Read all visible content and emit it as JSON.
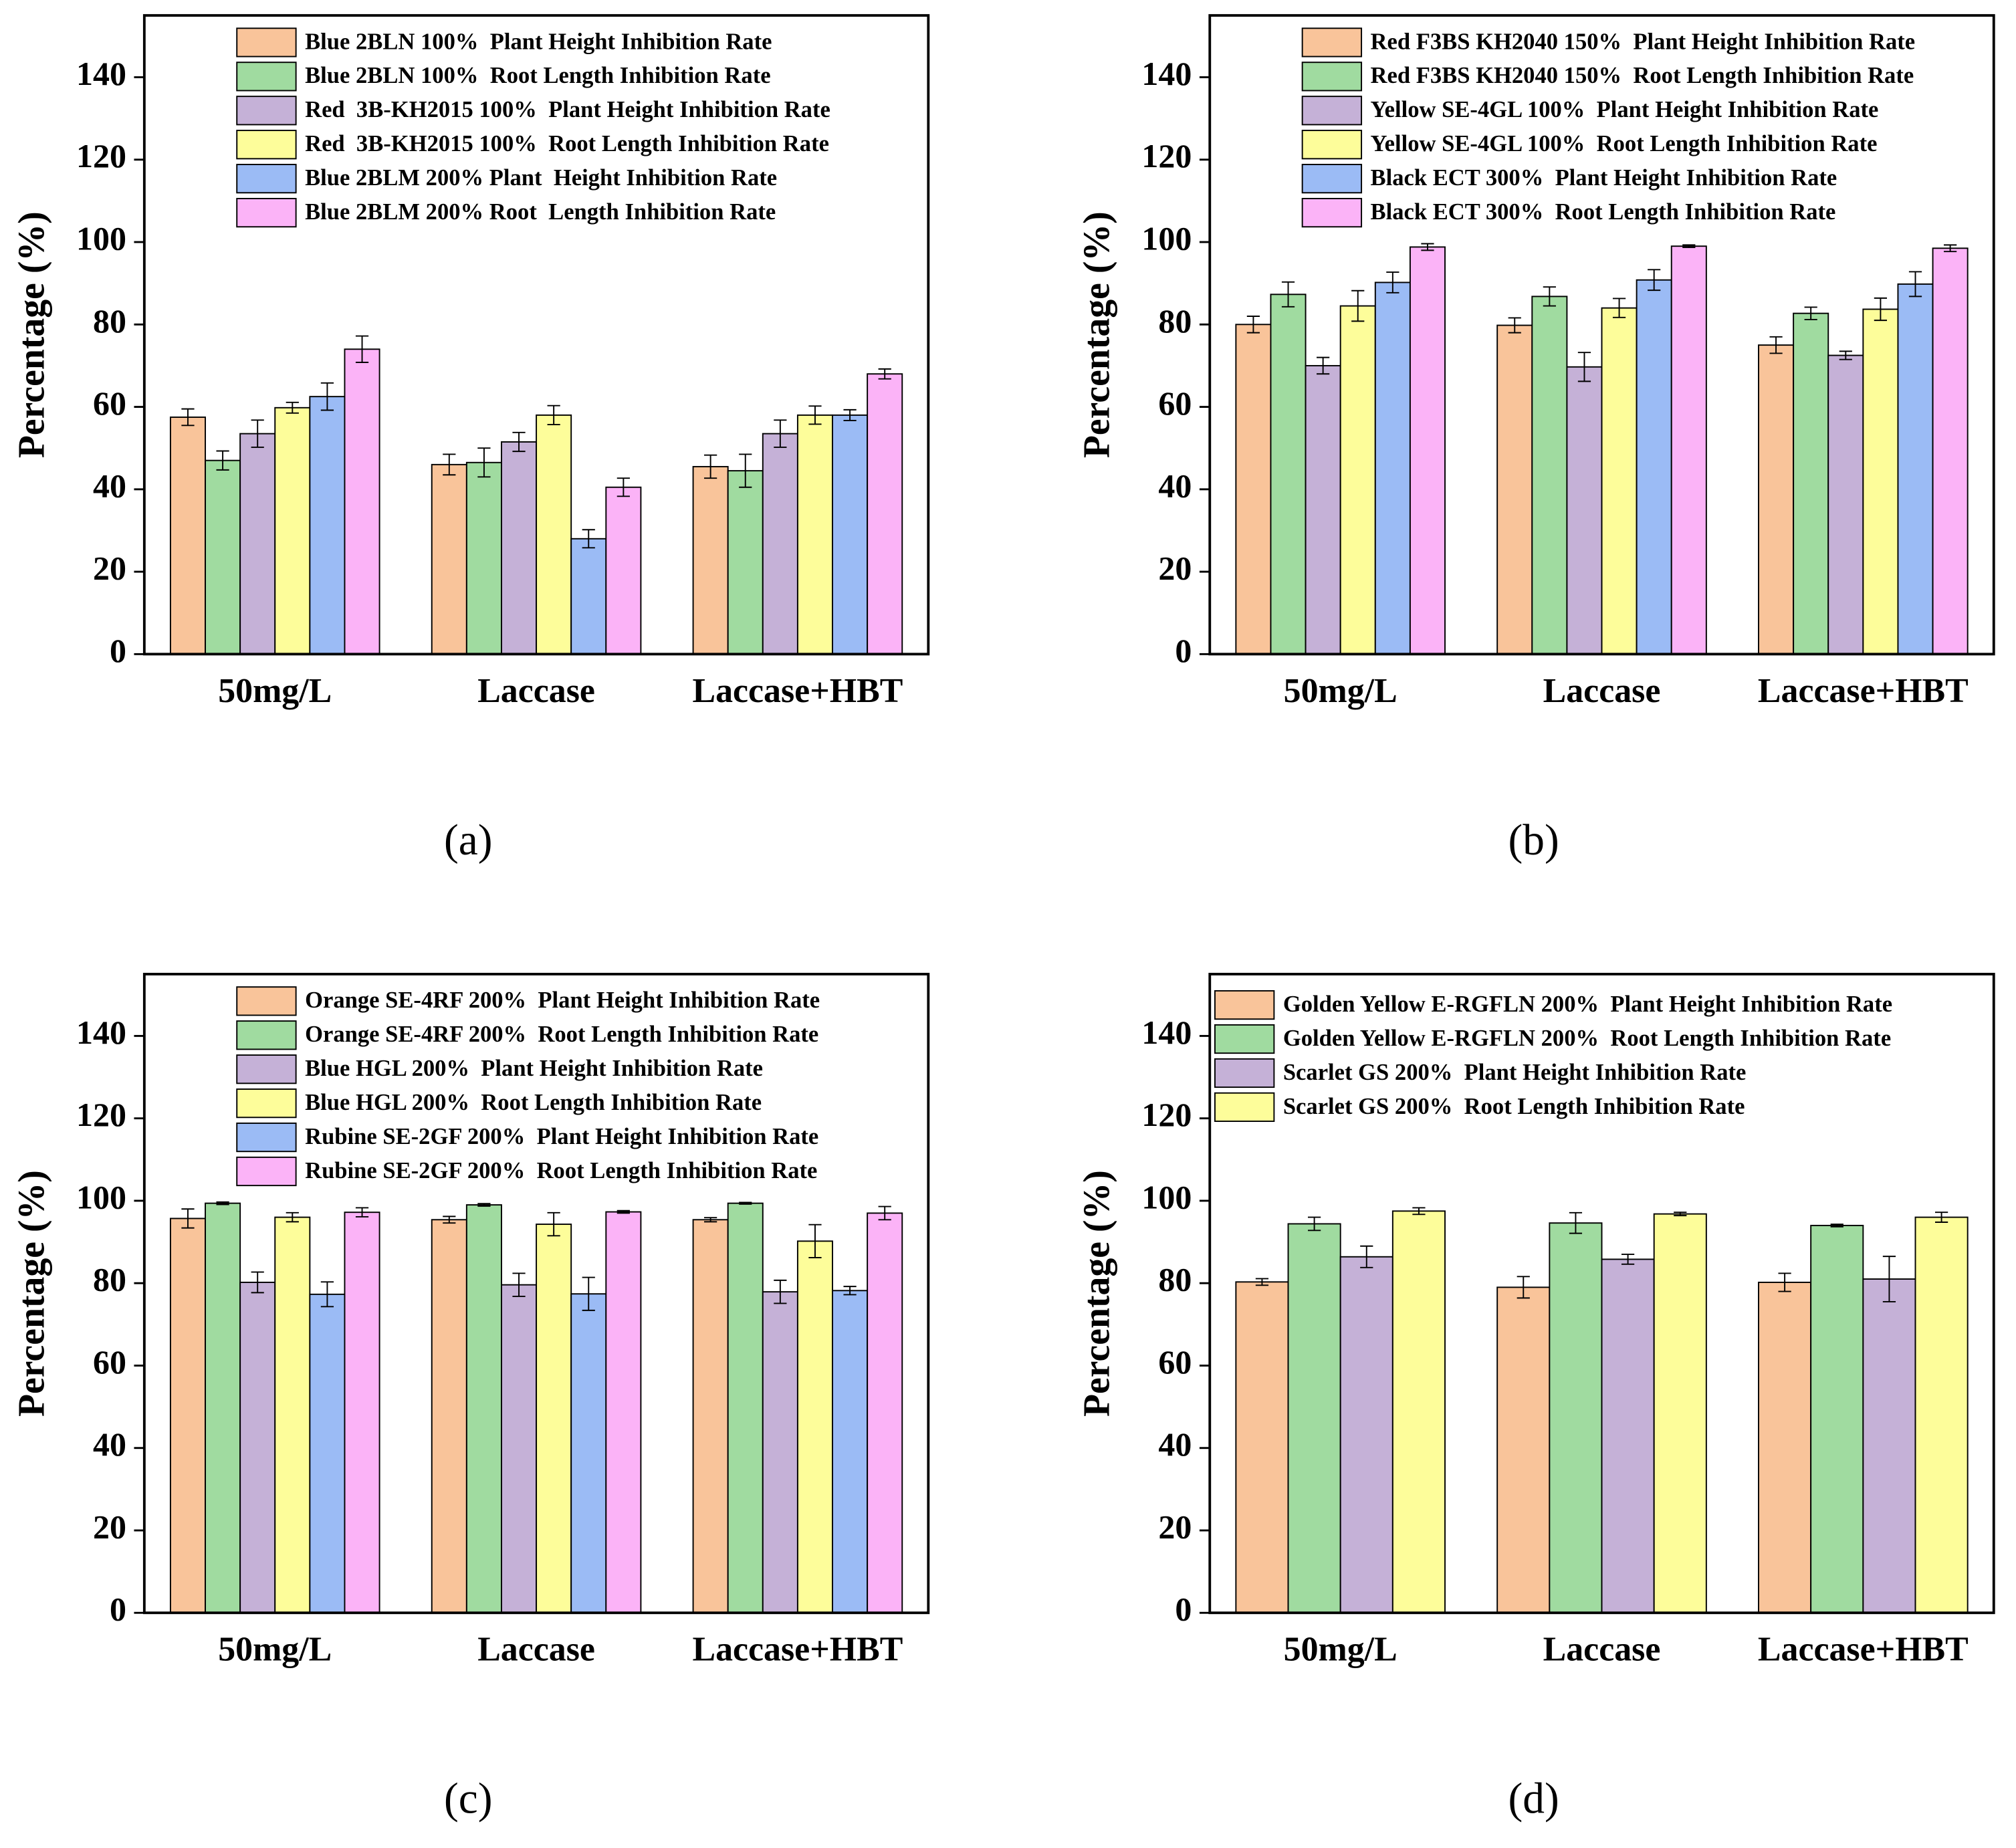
{
  "chart_data": [
    {
      "type": "bar",
      "label": "(a)",
      "ylabel": "Percentage (%)",
      "categories": [
        "50mg/L",
        "Laccase",
        "Laccase+HBT"
      ],
      "ylim": [
        0,
        155
      ],
      "yticks": [
        0,
        20,
        40,
        60,
        80,
        100,
        120,
        140
      ],
      "legend": "upper center",
      "series": [
        {
          "name": "Blue 2BLN 100%  Plant Height Inhibition Rate",
          "color": "#f9c49a",
          "values": [
            57.5,
            46,
            45.5
          ],
          "errors": [
            2,
            2.5,
            2.8
          ]
        },
        {
          "name": "Blue 2BLN 100%  Root Length Inhibition Rate",
          "color": "#a0dba0",
          "values": [
            47,
            46.5,
            44.5
          ],
          "errors": [
            2.3,
            3.5,
            4
          ]
        },
        {
          "name": "Red  3B-KH2015 100%  Plant Height Inhibition Rate",
          "color": "#c5b1d7",
          "values": [
            53.5,
            51.5,
            53.5
          ],
          "errors": [
            3.3,
            2.3,
            3.3
          ]
        },
        {
          "name": "Red  3B-KH2015 100%  Root Length Inhibition Rate",
          "color": "#fdfd9a",
          "values": [
            59.8,
            58,
            58
          ],
          "errors": [
            1.3,
            2.3,
            2.2
          ]
        },
        {
          "name": "Blue 2BLM 200% Plant  Height Inhibition Rate",
          "color": "#9bbbf5",
          "values": [
            62.5,
            28,
            58
          ],
          "errors": [
            3.3,
            2.2,
            1.3
          ]
        },
        {
          "name": "Blue 2BLM 200% Root  Length Inhibition Rate",
          "color": "#fbb3f7",
          "values": [
            74,
            40.5,
            68
          ],
          "errors": [
            3.2,
            2.2,
            1.2
          ]
        }
      ]
    },
    {
      "type": "bar",
      "label": "(b)",
      "ylabel": "Percentage (%)",
      "categories": [
        "50mg/L",
        "Laccase",
        "Laccase+HBT"
      ],
      "ylim": [
        0,
        155
      ],
      "yticks": [
        0,
        20,
        40,
        60,
        80,
        100,
        120,
        140
      ],
      "legend": "upper center",
      "series": [
        {
          "name": "Red F3BS KH2040 150%  Plant Height Inhibition Rate",
          "color": "#f9c49a",
          "values": [
            80,
            79.8,
            75
          ],
          "errors": [
            2,
            1.8,
            2
          ]
        },
        {
          "name": "Red F3BS KH2040 150%  Root Length Inhibition Rate",
          "color": "#a0dba0",
          "values": [
            87.3,
            86.8,
            82.7
          ],
          "errors": [
            3,
            2.3,
            1.5
          ]
        },
        {
          "name": "Yellow SE-4GL 100%  Plant Height Inhibition Rate",
          "color": "#c5b1d7",
          "values": [
            70,
            69.7,
            72.5
          ],
          "errors": [
            2,
            3.5,
            1
          ]
        },
        {
          "name": "Yellow SE-4GL 100%  Root Length Inhibition Rate",
          "color": "#fdfd9a",
          "values": [
            84.5,
            84,
            83.7
          ],
          "errors": [
            3.7,
            2.3,
            2.7
          ]
        },
        {
          "name": "Black ECT 300%  Plant Height Inhibition Rate",
          "color": "#9bbbf5",
          "values": [
            90.2,
            90.8,
            89.8
          ],
          "errors": [
            2.5,
            2.5,
            3
          ]
        },
        {
          "name": "Black ECT 300%  Root Length Inhibition Rate",
          "color": "#fbb3f7",
          "values": [
            98.8,
            99,
            98.5
          ],
          "errors": [
            0.8,
            0.3,
            0.8
          ]
        }
      ]
    },
    {
      "type": "bar",
      "label": "(c)",
      "ylabel": "Percentage (%)",
      "categories": [
        "50mg/L",
        "Laccase",
        "Laccase+HBT"
      ],
      "ylim": [
        0,
        155
      ],
      "yticks": [
        0,
        20,
        40,
        60,
        80,
        100,
        120,
        140
      ],
      "legend": "upper center",
      "series": [
        {
          "name": "Orange SE-4RF 200%  Plant Height Inhibition Rate",
          "color": "#f9c49a",
          "values": [
            95.7,
            95.4,
            95.4
          ],
          "errors": [
            2.3,
            0.8,
            0.5
          ]
        },
        {
          "name": "Orange SE-4RF 200%  Root Length Inhibition Rate",
          "color": "#a0dba0",
          "values": [
            99.4,
            99,
            99.4
          ],
          "errors": [
            0.3,
            0.3,
            0.2
          ]
        },
        {
          "name": "Blue HGL 200%  Plant Height Inhibition Rate",
          "color": "#c5b1d7",
          "values": [
            80.2,
            79.6,
            77.9
          ],
          "errors": [
            2.5,
            2.8,
            2.8
          ]
        },
        {
          "name": "Blue HGL 200%  Root Length Inhibition Rate",
          "color": "#fdfd9a",
          "values": [
            96,
            94.3,
            90.2
          ],
          "errors": [
            1.1,
            2.8,
            4
          ]
        },
        {
          "name": "Rubine SE-2GF 200%  Plant Height Inhibition Rate",
          "color": "#9bbbf5",
          "values": [
            77.3,
            77.4,
            78.2
          ],
          "errors": [
            3,
            4,
            1
          ]
        },
        {
          "name": "Rubine SE-2GF 200%  Root Length Inhibition Rate",
          "color": "#fbb3f7",
          "values": [
            97.2,
            97.3,
            97
          ],
          "errors": [
            1.1,
            0.3,
            1.6
          ]
        }
      ]
    },
    {
      "type": "bar",
      "label": "(d)",
      "ylabel": "Percentage (%)",
      "categories": [
        "50mg/L",
        "Laccase",
        "Laccase+HBT"
      ],
      "ylim": [
        0,
        155
      ],
      "yticks": [
        0,
        20,
        40,
        60,
        80,
        100,
        120,
        140
      ],
      "legend": "upper left",
      "series": [
        {
          "name": "Golden Yellow E-RGFLN 200%  Plant Height Inhibition Rate",
          "color": "#f9c49a",
          "values": [
            80.3,
            79,
            80.2
          ],
          "errors": [
            0.8,
            2.6,
            2.2
          ]
        },
        {
          "name": "Golden Yellow E-RGFLN 200%  Root Length Inhibition Rate",
          "color": "#a0dba0",
          "values": [
            94.4,
            94.6,
            94
          ],
          "errors": [
            1.6,
            2.5,
            0.3
          ]
        },
        {
          "name": "Scarlet GS 200%  Plant Height Inhibition Rate",
          "color": "#c5b1d7",
          "values": [
            86.4,
            85.8,
            81
          ],
          "errors": [
            2.6,
            1.2,
            5.5
          ]
        },
        {
          "name": "Scarlet GS 200%  Root Length Inhibition Rate",
          "color": "#fdfd9a",
          "values": [
            97.5,
            96.8,
            96
          ],
          "errors": [
            0.8,
            0.4,
            1.2
          ]
        }
      ]
    }
  ]
}
